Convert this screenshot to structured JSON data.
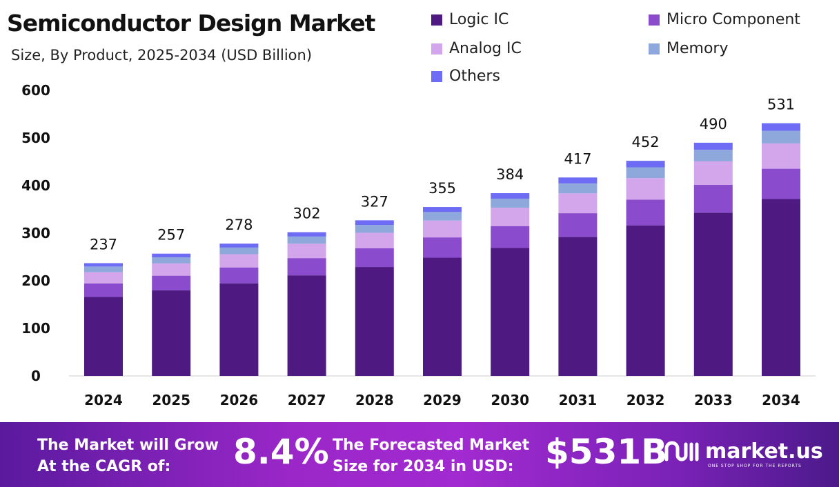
{
  "chart_data": {
    "type": "bar",
    "stacked": true,
    "title": "Semiconductor Design Market",
    "subtitle": "Size, By Product, 2025-2034 (USD Billion)",
    "categories": [
      "2024",
      "2025",
      "2026",
      "2027",
      "2028",
      "2029",
      "2030",
      "2031",
      "2032",
      "2033",
      "2034"
    ],
    "totals": [
      237,
      257,
      278,
      302,
      327,
      355,
      384,
      417,
      452,
      490,
      531
    ],
    "series": [
      {
        "name": "Logic IC",
        "color": "#4e1a82",
        "values": [
          165.9,
          179.9,
          194.6,
          211.4,
          228.9,
          248.5,
          268.8,
          291.9,
          316.4,
          343.0,
          371.7
        ]
      },
      {
        "name": "Micro Component",
        "color": "#8a4ccc",
        "values": [
          28.4,
          30.8,
          33.4,
          36.2,
          39.2,
          42.6,
          46.1,
          50.0,
          54.2,
          58.8,
          63.7
        ]
      },
      {
        "name": "Analog IC",
        "color": "#d3a6ec",
        "values": [
          23.7,
          25.7,
          27.8,
          30.2,
          32.7,
          35.5,
          38.4,
          41.7,
          45.2,
          49.0,
          53.1
        ]
      },
      {
        "name": "Memory",
        "color": "#8fa8dc",
        "values": [
          11.9,
          12.9,
          13.9,
          15.1,
          16.4,
          17.8,
          19.2,
          20.9,
          22.6,
          24.5,
          26.6
        ]
      },
      {
        "name": "Others",
        "color": "#6e6cf5",
        "values": [
          7.1,
          7.7,
          8.3,
          9.1,
          9.8,
          10.6,
          11.5,
          12.5,
          13.6,
          14.7,
          15.9
        ]
      }
    ],
    "yticks": [
      "0",
      "100",
      "200",
      "300",
      "400",
      "500",
      "600"
    ],
    "ylim": [
      0,
      600
    ],
    "grid": false,
    "legend": "top-right"
  },
  "footer": {
    "cagr_label_1": "The Market will Grow",
    "cagr_label_2": "At the CAGR of:",
    "cagr_value": "8.4%",
    "forecast_label_1": "The Forecasted Market",
    "forecast_label_2": "Size for 2034 in USD:",
    "forecast_value": "$531B",
    "brand": "market.us",
    "tagline": "ONE STOP SHOP FOR THE REPORTS"
  }
}
